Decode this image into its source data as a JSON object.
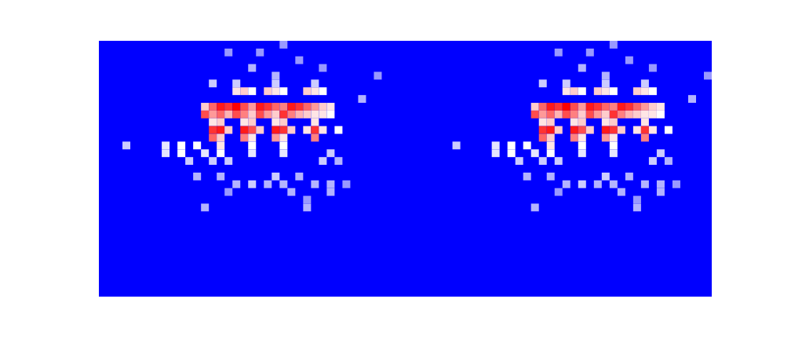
{
  "chart_data": {
    "type": "heatmap",
    "tick_labels": false,
    "xlim": [
      0,
      78
    ],
    "ylim": [
      0,
      33
    ],
    "zlim": [
      0,
      1
    ],
    "cells": [
      [
        16,
        1,
        0.3
      ],
      [
        20,
        1,
        0.3
      ],
      [
        23,
        0,
        0.3
      ],
      [
        25,
        2,
        0.3
      ],
      [
        19,
        3,
        0.35
      ],
      [
        28,
        3,
        0.3
      ],
      [
        14,
        5,
        0.4
      ],
      [
        22,
        4,
        0.35
      ],
      [
        35,
        4,
        0.3
      ],
      [
        33,
        7,
        0.35
      ],
      [
        17,
        5,
        0.4
      ],
      [
        22,
        5,
        0.4
      ],
      [
        27,
        5,
        0.4
      ],
      [
        17,
        6,
        0.55
      ],
      [
        18,
        6,
        0.6
      ],
      [
        19,
        6,
        0.5
      ],
      [
        21,
        6,
        0.6
      ],
      [
        22,
        6,
        0.55
      ],
      [
        23,
        6,
        0.5
      ],
      [
        26,
        6,
        0.6
      ],
      [
        27,
        6,
        0.55
      ],
      [
        28,
        6,
        0.5
      ],
      [
        13,
        8,
        0.6
      ],
      [
        14,
        8,
        0.8
      ],
      [
        15,
        8,
        0.95
      ],
      [
        16,
        8,
        0.9
      ],
      [
        17,
        8,
        1
      ],
      [
        18,
        8,
        0.85
      ],
      [
        19,
        8,
        0.7
      ],
      [
        20,
        8,
        0.95
      ],
      [
        21,
        8,
        0.9
      ],
      [
        22,
        8,
        0.8
      ],
      [
        23,
        8,
        0.75
      ],
      [
        24,
        8,
        0.95
      ],
      [
        25,
        8,
        0.9
      ],
      [
        26,
        8,
        0.8
      ],
      [
        27,
        8,
        0.7
      ],
      [
        28,
        8,
        0.6
      ],
      [
        29,
        8,
        0.55
      ],
      [
        13,
        9,
        0.85
      ],
      [
        14,
        9,
        0.7
      ],
      [
        15,
        9,
        0.8
      ],
      [
        16,
        9,
        0.65
      ],
      [
        17,
        9,
        0.85
      ],
      [
        18,
        9,
        0.75
      ],
      [
        19,
        9,
        0.6
      ],
      [
        20,
        9,
        0.85
      ],
      [
        21,
        9,
        0.7
      ],
      [
        22,
        9,
        0.6
      ],
      [
        23,
        9,
        0.9
      ],
      [
        24,
        9,
        0.75
      ],
      [
        25,
        9,
        0.65
      ],
      [
        26,
        9,
        0.6
      ],
      [
        27,
        9,
        0.55
      ],
      [
        28,
        9,
        0.55
      ],
      [
        29,
        9,
        0.5
      ],
      [
        14,
        10,
        0.55
      ],
      [
        15,
        10,
        0.6
      ],
      [
        18,
        10,
        0.55
      ],
      [
        19,
        10,
        0.6
      ],
      [
        22,
        10,
        0.55
      ],
      [
        23,
        10,
        0.6
      ],
      [
        27,
        10,
        0.55
      ],
      [
        14,
        11,
        0.9
      ],
      [
        15,
        11,
        0.95
      ],
      [
        16,
        11,
        0.6
      ],
      [
        18,
        11,
        0.95
      ],
      [
        19,
        11,
        0.85
      ],
      [
        20,
        11,
        0.6
      ],
      [
        22,
        11,
        0.95
      ],
      [
        23,
        11,
        0.9
      ],
      [
        24,
        11,
        0.6
      ],
      [
        26,
        11,
        0.55
      ],
      [
        27,
        11,
        0.9
      ],
      [
        28,
        11,
        0.55
      ],
      [
        30,
        11,
        0.5
      ],
      [
        14,
        12,
        0.8
      ],
      [
        15,
        12,
        0.6
      ],
      [
        18,
        12,
        0.75
      ],
      [
        19,
        12,
        0.55
      ],
      [
        22,
        12,
        0.7
      ],
      [
        23,
        12,
        0.55
      ],
      [
        27,
        12,
        0.75
      ],
      [
        3,
        13,
        0.4
      ],
      [
        8,
        13,
        0.45
      ],
      [
        10,
        13,
        0.5
      ],
      [
        12,
        13,
        0.5
      ],
      [
        15,
        13,
        0.55
      ],
      [
        19,
        13,
        0.5
      ],
      [
        23,
        13,
        0.5
      ],
      [
        8,
        14,
        0.45
      ],
      [
        10,
        14,
        0.5
      ],
      [
        13,
        14,
        0.45
      ],
      [
        15,
        14,
        0.5
      ],
      [
        19,
        14,
        0.45
      ],
      [
        23,
        14,
        0.45
      ],
      [
        29,
        14,
        0.4
      ],
      [
        11,
        15,
        0.4
      ],
      [
        14,
        15,
        0.4
      ],
      [
        16,
        15,
        0.4
      ],
      [
        28,
        15,
        0.4
      ],
      [
        30,
        15,
        0.35
      ],
      [
        12,
        17,
        0.35
      ],
      [
        15,
        17,
        0.35
      ],
      [
        17,
        18,
        0.35
      ],
      [
        19,
        18,
        0.4
      ],
      [
        21,
        18,
        0.35
      ],
      [
        22,
        17,
        0.4
      ],
      [
        23,
        18,
        0.35
      ],
      [
        25,
        17,
        0.35
      ],
      [
        27,
        18,
        0.35
      ],
      [
        29,
        18,
        0.35
      ],
      [
        31,
        18,
        0.3
      ],
      [
        16,
        19,
        0.3
      ],
      [
        24,
        19,
        0.35
      ],
      [
        26,
        20,
        0.3
      ],
      [
        29,
        19,
        0.35
      ],
      [
        13,
        21,
        0.35
      ],
      [
        26,
        21,
        0.35
      ],
      [
        58,
        1,
        0.3
      ],
      [
        62,
        1,
        0.3
      ],
      [
        65,
        0,
        0.3
      ],
      [
        67,
        2,
        0.3
      ],
      [
        61,
        3,
        0.35
      ],
      [
        70,
        3,
        0.3
      ],
      [
        56,
        5,
        0.4
      ],
      [
        64,
        4,
        0.35
      ],
      [
        77,
        4,
        0.3
      ],
      [
        75,
        7,
        0.35
      ],
      [
        59,
        5,
        0.4
      ],
      [
        64,
        5,
        0.4
      ],
      [
        69,
        5,
        0.4
      ],
      [
        59,
        6,
        0.55
      ],
      [
        60,
        6,
        0.6
      ],
      [
        61,
        6,
        0.5
      ],
      [
        63,
        6,
        0.6
      ],
      [
        64,
        6,
        0.55
      ],
      [
        65,
        6,
        0.5
      ],
      [
        68,
        6,
        0.6
      ],
      [
        69,
        6,
        0.55
      ],
      [
        70,
        6,
        0.5
      ],
      [
        55,
        8,
        0.6
      ],
      [
        56,
        8,
        0.8
      ],
      [
        57,
        8,
        0.95
      ],
      [
        58,
        8,
        0.9
      ],
      [
        59,
        8,
        1
      ],
      [
        60,
        8,
        0.85
      ],
      [
        61,
        8,
        0.7
      ],
      [
        62,
        8,
        0.95
      ],
      [
        63,
        8,
        0.9
      ],
      [
        64,
        8,
        0.8
      ],
      [
        65,
        8,
        0.75
      ],
      [
        66,
        8,
        0.95
      ],
      [
        67,
        8,
        0.9
      ],
      [
        68,
        8,
        0.8
      ],
      [
        69,
        8,
        0.7
      ],
      [
        70,
        8,
        0.6
      ],
      [
        71,
        8,
        0.55
      ],
      [
        55,
        9,
        0.85
      ],
      [
        56,
        9,
        0.7
      ],
      [
        57,
        9,
        0.8
      ],
      [
        58,
        9,
        0.65
      ],
      [
        59,
        9,
        0.85
      ],
      [
        60,
        9,
        0.75
      ],
      [
        61,
        9,
        0.6
      ],
      [
        62,
        9,
        0.85
      ],
      [
        63,
        9,
        0.7
      ],
      [
        64,
        9,
        0.6
      ],
      [
        65,
        9,
        0.9
      ],
      [
        66,
        9,
        0.75
      ],
      [
        67,
        9,
        0.65
      ],
      [
        68,
        9,
        0.6
      ],
      [
        69,
        9,
        0.55
      ],
      [
        70,
        9,
        0.55
      ],
      [
        71,
        9,
        0.5
      ],
      [
        56,
        10,
        0.55
      ],
      [
        57,
        10,
        0.6
      ],
      [
        60,
        10,
        0.55
      ],
      [
        61,
        10,
        0.6
      ],
      [
        64,
        10,
        0.55
      ],
      [
        65,
        10,
        0.6
      ],
      [
        69,
        10,
        0.55
      ],
      [
        56,
        11,
        0.9
      ],
      [
        57,
        11,
        0.95
      ],
      [
        58,
        11,
        0.6
      ],
      [
        60,
        11,
        0.95
      ],
      [
        61,
        11,
        0.85
      ],
      [
        62,
        11,
        0.6
      ],
      [
        64,
        11,
        0.95
      ],
      [
        65,
        11,
        0.9
      ],
      [
        66,
        11,
        0.6
      ],
      [
        68,
        11,
        0.55
      ],
      [
        69,
        11,
        0.9
      ],
      [
        70,
        11,
        0.55
      ],
      [
        72,
        11,
        0.5
      ],
      [
        56,
        12,
        0.8
      ],
      [
        57,
        12,
        0.6
      ],
      [
        60,
        12,
        0.75
      ],
      [
        61,
        12,
        0.55
      ],
      [
        64,
        12,
        0.7
      ],
      [
        65,
        12,
        0.55
      ],
      [
        69,
        12,
        0.75
      ],
      [
        45,
        13,
        0.4
      ],
      [
        50,
        13,
        0.45
      ],
      [
        52,
        13,
        0.5
      ],
      [
        54,
        13,
        0.5
      ],
      [
        57,
        13,
        0.55
      ],
      [
        61,
        13,
        0.5
      ],
      [
        65,
        13,
        0.5
      ],
      [
        50,
        14,
        0.45
      ],
      [
        52,
        14,
        0.5
      ],
      [
        55,
        14,
        0.45
      ],
      [
        57,
        14,
        0.5
      ],
      [
        61,
        14,
        0.45
      ],
      [
        65,
        14,
        0.45
      ],
      [
        71,
        14,
        0.4
      ],
      [
        53,
        15,
        0.4
      ],
      [
        56,
        15,
        0.4
      ],
      [
        58,
        15,
        0.4
      ],
      [
        70,
        15,
        0.4
      ],
      [
        72,
        15,
        0.35
      ],
      [
        54,
        17,
        0.35
      ],
      [
        57,
        17,
        0.35
      ],
      [
        59,
        18,
        0.35
      ],
      [
        61,
        18,
        0.4
      ],
      [
        63,
        18,
        0.35
      ],
      [
        64,
        17,
        0.4
      ],
      [
        65,
        18,
        0.35
      ],
      [
        67,
        17,
        0.35
      ],
      [
        69,
        18,
        0.35
      ],
      [
        71,
        18,
        0.35
      ],
      [
        73,
        18,
        0.3
      ],
      [
        58,
        19,
        0.3
      ],
      [
        66,
        19,
        0.35
      ],
      [
        68,
        20,
        0.3
      ],
      [
        71,
        19,
        0.35
      ],
      [
        55,
        21,
        0.35
      ],
      [
        68,
        21,
        0.35
      ]
    ]
  }
}
